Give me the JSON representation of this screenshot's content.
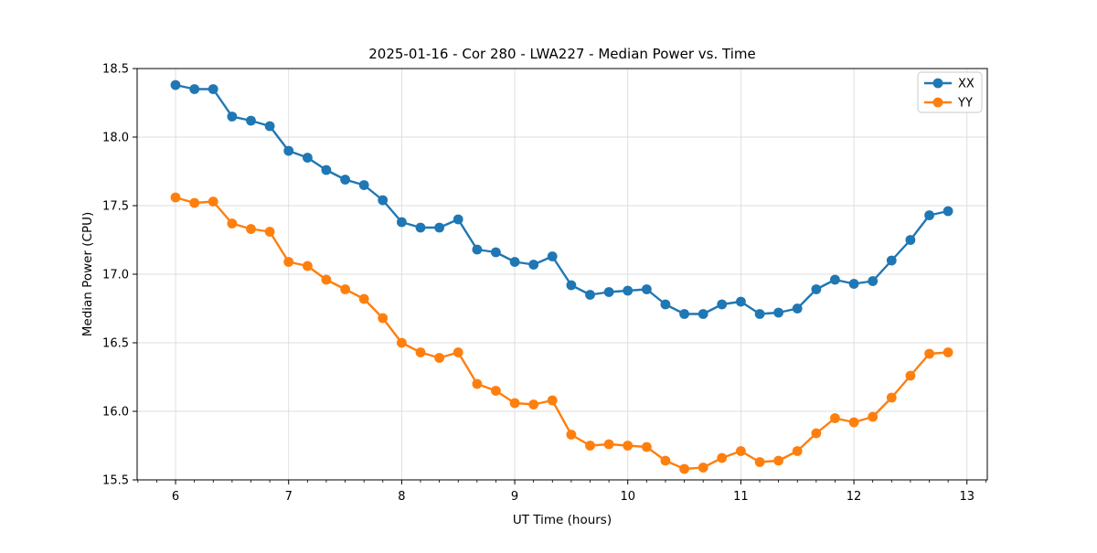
{
  "chart_data": {
    "type": "line",
    "title": "2025-01-16 - Cor 280 - LWA227 - Median Power vs. Time",
    "xlabel": "UT Time (hours)",
    "ylabel": "Median Power (CPU)",
    "xlim": [
      5.66,
      13.18
    ],
    "ylim": [
      15.5,
      18.5
    ],
    "xticks": [
      6,
      7,
      8,
      9,
      10,
      11,
      12,
      13
    ],
    "yticks": [
      15.5,
      16.0,
      16.5,
      17.0,
      17.5,
      18.0,
      18.5
    ],
    "x_minor_step_hours": 0.1667,
    "grid": true,
    "legend_position": "upper right",
    "x": [
      6.0,
      6.167,
      6.333,
      6.5,
      6.667,
      6.833,
      7.0,
      7.167,
      7.333,
      7.5,
      7.667,
      7.833,
      8.0,
      8.167,
      8.333,
      8.5,
      8.667,
      8.833,
      9.0,
      9.167,
      9.333,
      9.5,
      9.667,
      9.833,
      10.0,
      10.167,
      10.333,
      10.5,
      10.667,
      10.833,
      11.0,
      11.167,
      11.333,
      11.5,
      11.667,
      11.833,
      12.0,
      12.167,
      12.333,
      12.5,
      12.667,
      12.833
    ],
    "series": [
      {
        "name": "XX",
        "color": "#1f77b4",
        "values": [
          18.38,
          18.35,
          18.35,
          18.15,
          18.12,
          18.08,
          17.9,
          17.85,
          17.76,
          17.69,
          17.65,
          17.54,
          17.38,
          17.34,
          17.34,
          17.4,
          17.18,
          17.16,
          17.09,
          17.07,
          17.13,
          16.92,
          16.85,
          16.87,
          16.88,
          16.89,
          16.78,
          16.71,
          16.71,
          16.78,
          16.8,
          16.71,
          16.72,
          16.75,
          16.89,
          16.96,
          16.93,
          16.95,
          17.1,
          17.25,
          17.43,
          17.46
        ]
      },
      {
        "name": "YY",
        "color": "#ff7f0e",
        "values": [
          17.56,
          17.52,
          17.53,
          17.37,
          17.33,
          17.31,
          17.09,
          17.06,
          16.96,
          16.89,
          16.82,
          16.68,
          16.5,
          16.43,
          16.39,
          16.43,
          16.2,
          16.15,
          16.06,
          16.05,
          16.08,
          15.83,
          15.75,
          15.76,
          15.75,
          15.74,
          15.64,
          15.58,
          15.59,
          15.66,
          15.71,
          15.63,
          15.64,
          15.71,
          15.84,
          15.95,
          15.92,
          15.96,
          16.1,
          16.26,
          16.42,
          16.43
        ]
      }
    ],
    "style": {
      "grid_color": "#dcdcdc",
      "spine_color": "#000000",
      "background": "#ffffff",
      "legend_border": "#c9c9c9"
    }
  }
}
